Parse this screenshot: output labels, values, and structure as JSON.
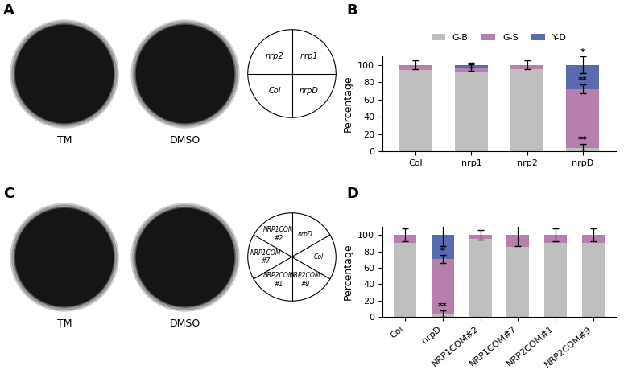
{
  "panel_letters": [
    "A",
    "B",
    "C",
    "D"
  ],
  "plates": [
    {
      "dishes": [
        "TM",
        "DMSO"
      ],
      "sectors": [
        "nrp1",
        "nrp2",
        "Col",
        "nrpD"
      ]
    },
    {
      "dishes": [
        "TM",
        "DMSO"
      ],
      "sectors": [
        "nrpD",
        "NRP1COM\n#2",
        "NRP1COM\n#7",
        "NRP2COM\n#1",
        "NRP2COM\n#9",
        "Col"
      ]
    }
  ],
  "chart_data": [
    {
      "type": "bar",
      "stacked": true,
      "legend": "upper center",
      "y_label": "Percentage",
      "categories": [
        "Col",
        "nrp1",
        "nrp2",
        "nrpD"
      ],
      "ylim": [
        0,
        110
      ],
      "yticks": [
        0,
        20,
        40,
        60,
        80,
        100
      ],
      "series": [
        {
          "name": "G-B",
          "color": "#bfbfbf",
          "values": [
            94,
            92,
            95,
            4
          ],
          "errors": [
            null,
            null,
            null,
            4
          ],
          "significance": [
            null,
            null,
            null,
            "**"
          ]
        },
        {
          "name": "G-S",
          "color": "#b67fae",
          "values": [
            6,
            5,
            5,
            68
          ],
          "errors": [
            5,
            4,
            5,
            5
          ],
          "significance": [
            null,
            null,
            null,
            "**"
          ]
        },
        {
          "name": "Y-D",
          "color": "#5a6aae",
          "values": [
            0,
            3,
            0,
            28
          ],
          "errors": [
            null,
            3,
            null,
            10
          ],
          "significance": [
            null,
            null,
            null,
            "*"
          ]
        }
      ]
    },
    {
      "type": "bar",
      "stacked": true,
      "y_label": "Percentage",
      "categories": [
        "Col",
        "nrpD",
        "NRP1COM#2",
        "NRP1COM#7",
        "NRP2COM#1",
        "NRP2COM#9"
      ],
      "ylim": [
        0,
        110
      ],
      "yticks": [
        0,
        20,
        40,
        60,
        80,
        100
      ],
      "series": [
        {
          "name": "G-B",
          "color": "#bfbfbf",
          "values": [
            90,
            4,
            95,
            85,
            90,
            90
          ],
          "errors": [
            null,
            4,
            null,
            null,
            null,
            null
          ],
          "significance": [
            null,
            "**",
            null,
            null,
            null,
            null
          ]
        },
        {
          "name": "G-S",
          "color": "#b67fae",
          "values": [
            10,
            67,
            5,
            15,
            10,
            10
          ],
          "errors": [
            8,
            5,
            6,
            14,
            8,
            8
          ],
          "significance": [
            null,
            "*",
            null,
            null,
            null,
            null
          ]
        },
        {
          "name": "Y-D",
          "color": "#5a6aae",
          "values": [
            0,
            29,
            0,
            0,
            0,
            0
          ],
          "errors": [
            null,
            14,
            null,
            null,
            null,
            null
          ],
          "significance": [
            null,
            null,
            null,
            null,
            null,
            null
          ]
        }
      ]
    }
  ]
}
